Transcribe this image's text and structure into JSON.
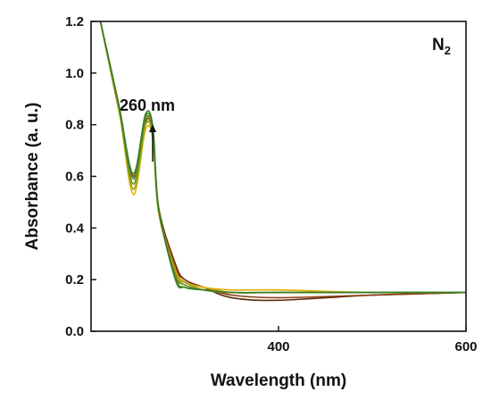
{
  "chart_data": {
    "type": "line",
    "title": "",
    "xlabel": "Wavelength (nm)",
    "ylabel": "Absorbance (a. u.)",
    "xlim": [
      200,
      600
    ],
    "ylim": [
      0.0,
      1.2
    ],
    "x_ticks": [
      400,
      600
    ],
    "y_ticks": [
      0.0,
      0.2,
      0.4,
      0.6,
      0.8,
      1.0,
      1.2
    ],
    "y_tick_labels": [
      "0.0",
      "0.2",
      "0.4",
      "0.6",
      "0.8",
      "1.0",
      "1.2"
    ],
    "x_tick_labels": [
      "400",
      "600"
    ],
    "legend": "none",
    "grid": false,
    "annotations": [
      {
        "text": "260 nm",
        "x": 258,
        "y": 0.86
      },
      {
        "text": "N",
        "subscript": "2",
        "position": "top-right"
      }
    ],
    "arrow": {
      "direction": "up",
      "x": 236,
      "y_from": 0.66,
      "y_to": 0.79
    },
    "series": [
      {
        "color": "#5b2a0a",
        "x": [
          210,
          230,
          245,
          258,
          266,
          272,
          290,
          300,
          320,
          350,
          400,
          500,
          600
        ],
        "y": [
          1.2,
          0.85,
          0.6,
          0.8,
          0.76,
          0.48,
          0.26,
          0.2,
          0.17,
          0.13,
          0.12,
          0.14,
          0.15
        ]
      },
      {
        "color": "#8b3a10",
        "x": [
          210,
          230,
          245,
          258,
          266,
          272,
          290,
          300,
          320,
          350,
          400,
          500,
          600
        ],
        "y": [
          1.2,
          0.86,
          0.6,
          0.81,
          0.77,
          0.48,
          0.25,
          0.2,
          0.17,
          0.14,
          0.13,
          0.14,
          0.15
        ]
      },
      {
        "color": "#b8860b",
        "x": [
          210,
          230,
          245,
          258,
          266,
          272,
          290,
          300,
          320,
          350,
          400,
          500,
          600
        ],
        "y": [
          1.2,
          0.85,
          0.61,
          0.82,
          0.77,
          0.47,
          0.24,
          0.19,
          0.17,
          0.15,
          0.15,
          0.15,
          0.15
        ]
      },
      {
        "color": "#e0b000",
        "x": [
          210,
          230,
          245,
          258,
          266,
          272,
          290,
          300,
          320,
          350,
          400,
          500,
          600
        ],
        "y": [
          1.2,
          0.85,
          0.53,
          0.78,
          0.74,
          0.46,
          0.23,
          0.19,
          0.17,
          0.16,
          0.16,
          0.15,
          0.15
        ]
      },
      {
        "color": "#9aa51a",
        "x": [
          210,
          230,
          245,
          258,
          266,
          272,
          290,
          300,
          320,
          350,
          400,
          500,
          600
        ],
        "y": [
          1.2,
          0.86,
          0.55,
          0.8,
          0.75,
          0.47,
          0.22,
          0.19,
          0.16,
          0.15,
          0.15,
          0.15,
          0.15
        ]
      },
      {
        "color": "#6e8b1c",
        "x": [
          210,
          230,
          245,
          258,
          266,
          272,
          290,
          300,
          320,
          350,
          400,
          500,
          600
        ],
        "y": [
          1.2,
          0.86,
          0.57,
          0.82,
          0.77,
          0.47,
          0.22,
          0.18,
          0.16,
          0.15,
          0.15,
          0.15,
          0.15
        ]
      },
      {
        "color": "#4f8f2a",
        "x": [
          210,
          230,
          245,
          258,
          266,
          272,
          290,
          300,
          320,
          350,
          400,
          500,
          600
        ],
        "y": [
          1.2,
          0.87,
          0.59,
          0.83,
          0.78,
          0.48,
          0.21,
          0.17,
          0.16,
          0.15,
          0.15,
          0.15,
          0.15
        ]
      },
      {
        "color": "#3a7d2a",
        "x": [
          210,
          230,
          245,
          258,
          266,
          272,
          290,
          300,
          320,
          350,
          400,
          500,
          600
        ],
        "y": [
          1.2,
          0.87,
          0.61,
          0.84,
          0.79,
          0.48,
          0.2,
          0.17,
          0.16,
          0.15,
          0.15,
          0.15,
          0.15
        ]
      }
    ]
  }
}
